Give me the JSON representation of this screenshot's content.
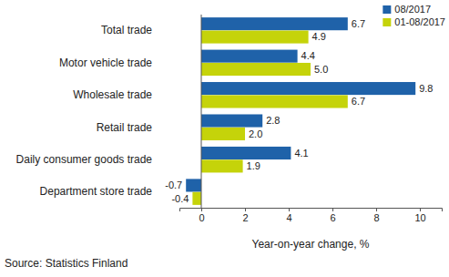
{
  "chart_data": {
    "type": "bar",
    "orientation": "horizontal",
    "categories": [
      "Total trade",
      "Motor vehicle trade",
      "Wholesale trade",
      "Retail trade",
      "Daily consumer goods trade",
      "Department store trade"
    ],
    "series": [
      {
        "name": "08/2017",
        "color": "#1f62a9",
        "values": [
          6.7,
          4.4,
          9.8,
          2.8,
          4.1,
          -0.7
        ],
        "value_labels": [
          "6.7",
          "4.4",
          "9.8",
          "2.8",
          "4.1",
          "-0.7"
        ]
      },
      {
        "name": "01-08/2017",
        "color": "#c5d30a",
        "values": [
          4.9,
          5.0,
          6.7,
          2.0,
          1.9,
          -0.4
        ],
        "value_labels": [
          "4.9",
          "5.0",
          "6.7",
          "2.0",
          "1.9",
          "-0.4"
        ]
      }
    ],
    "xlabel": "Year-on-year change, %",
    "xlim": [
      -1,
      11
    ],
    "xticks": [
      0,
      2,
      4,
      6,
      8,
      10
    ],
    "grid": false,
    "legend": "upper right",
    "data_labels": true,
    "source": "Source: Statistics Finland"
  }
}
